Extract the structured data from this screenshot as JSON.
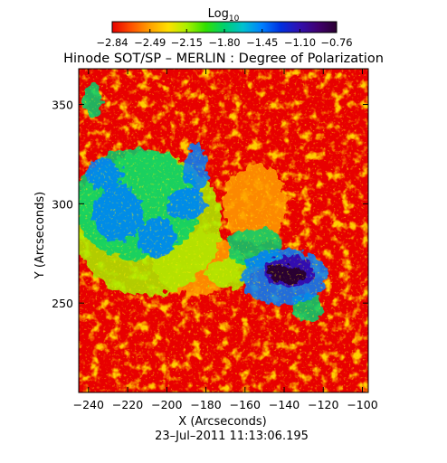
{
  "chart_data": {
    "type": "heatmap",
    "title": "Hinode SOT/SP – MERLIN : Degree of Polarization",
    "xlabel": "X (Arcseconds)",
    "ylabel": "Y (Arcseconds)",
    "timestamp": "23–Jul–2011  11:13:06.195",
    "xlim": [
      -245,
      -97
    ],
    "ylim": [
      205,
      368
    ],
    "x_ticks": [
      -240,
      -220,
      -200,
      -180,
      -160,
      -140,
      -120,
      -100
    ],
    "x_tick_labels": [
      "−240",
      "−220",
      "−200",
      "−180",
      "−160",
      "−140",
      "−120",
      "−100"
    ],
    "y_ticks": [
      250,
      300,
      350
    ],
    "y_tick_labels": [
      "250",
      "300",
      "350"
    ],
    "colorbar": {
      "label_base": "Log",
      "label_sub": "10",
      "range": [
        -2.84,
        -0.76
      ],
      "ticks": [
        -2.84,
        -2.49,
        -2.15,
        -1.8,
        -1.45,
        -1.1,
        -0.76
      ],
      "tick_labels": [
        "−2.84",
        "−2.49",
        "−2.15",
        "−1.80",
        "−1.45",
        "−1.10",
        "−0.76"
      ],
      "colors": [
        "#e80000",
        "#ff5000",
        "#ffa000",
        "#ffe000",
        "#a8f000",
        "#30e000",
        "#00d070",
        "#00c0d0",
        "#0080ff",
        "#0030e0",
        "#3010b0",
        "#400070",
        "#2a0030"
      ]
    },
    "features": [
      {
        "x": -141,
        "y": 265,
        "rx": 7,
        "ry": 4.5,
        "value": -0.76
      },
      {
        "x": -135,
        "y": 264,
        "rx": 5,
        "ry": 4,
        "value": -0.76
      },
      {
        "x": -137,
        "y": 266,
        "rx": 13,
        "ry": 8,
        "value": -1.1
      },
      {
        "x": -140,
        "y": 263,
        "rx": 22,
        "ry": 14,
        "value": -1.45
      },
      {
        "x": -225,
        "y": 295,
        "rx": 13,
        "ry": 14,
        "value": -1.45
      },
      {
        "x": -232,
        "y": 315,
        "rx": 9,
        "ry": 8,
        "value": -1.45
      },
      {
        "x": -205,
        "y": 283,
        "rx": 10,
        "ry": 10,
        "value": -1.45
      },
      {
        "x": -185,
        "y": 318,
        "rx": 6,
        "ry": 12,
        "value": -1.45
      },
      {
        "x": -190,
        "y": 300,
        "rx": 10,
        "ry": 8,
        "value": -1.45
      },
      {
        "x": -215,
        "y": 300,
        "rx": 32,
        "ry": 28,
        "value": -1.8
      },
      {
        "x": -238,
        "y": 352,
        "rx": 5,
        "ry": 8,
        "value": -1.8
      },
      {
        "x": -155,
        "y": 278,
        "rx": 14,
        "ry": 10,
        "value": -1.8
      },
      {
        "x": -128,
        "y": 248,
        "rx": 8,
        "ry": 7,
        "value": -1.8
      },
      {
        "x": -210,
        "y": 290,
        "rx": 38,
        "ry": 36,
        "value": -2.15
      },
      {
        "x": -168,
        "y": 265,
        "rx": 12,
        "ry": 8,
        "value": -2.15
      },
      {
        "x": -185,
        "y": 270,
        "rx": 22,
        "ry": 16,
        "value": -2.49
      },
      {
        "x": -155,
        "y": 300,
        "rx": 16,
        "ry": 20,
        "value": -2.49
      }
    ]
  }
}
